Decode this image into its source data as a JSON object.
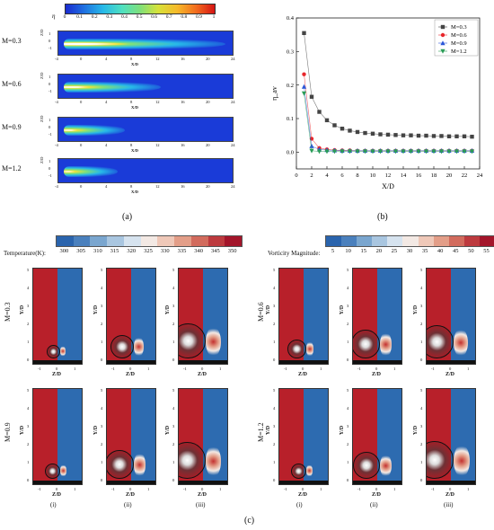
{
  "eta_colorbar": {
    "symbol": "η",
    "ticks": [
      "0",
      "0.1",
      "0.2",
      "0.3",
      "0.4",
      "0.5",
      "0.6",
      "0.7",
      "0.8",
      "0.9",
      "1"
    ]
  },
  "panel_a": {
    "caption": "(a)",
    "rows": [
      {
        "label": "M=0.3",
        "jet_length": 1.0,
        "core_strength": 1.0
      },
      {
        "label": "M=0.6",
        "jet_length": 0.55,
        "core_strength": 0.6
      },
      {
        "label": "M=0.9",
        "jet_length": 0.3,
        "core_strength": 0.45
      },
      {
        "label": "M=1.2",
        "jet_length": 0.25,
        "core_strength": 0.4
      }
    ],
    "xlabel": "X/D",
    "ylabel": "Z/D",
    "xticks": [
      "-4",
      "0",
      "4",
      "8",
      "12",
      "16",
      "20",
      "24"
    ],
    "yticks": [
      "1",
      "0",
      "-1"
    ]
  },
  "chart_data": {
    "type": "line",
    "caption": "(b)",
    "xlabel": "X/D",
    "ylabel": "η_av",
    "xlim": [
      0,
      24
    ],
    "ylim": [
      -0.05,
      0.4
    ],
    "xticks": [
      "0",
      "2",
      "4",
      "6",
      "8",
      "10",
      "12",
      "14",
      "16",
      "18",
      "20",
      "22",
      "24"
    ],
    "yticks": [
      "0.0",
      "0.1",
      "0.2",
      "0.3",
      "0.4"
    ],
    "legend_position": "top-right",
    "x": [
      1,
      2,
      3,
      4,
      5,
      6,
      7,
      8,
      9,
      10,
      11,
      12,
      13,
      14,
      15,
      16,
      17,
      18,
      19,
      20,
      21,
      22,
      23
    ],
    "series": [
      {
        "name": "M=0.3",
        "color": "#444444",
        "marker": "square",
        "values": [
          0.355,
          0.165,
          0.12,
          0.095,
          0.08,
          0.07,
          0.064,
          0.06,
          0.057,
          0.055,
          0.053,
          0.052,
          0.051,
          0.05,
          0.05,
          0.049,
          0.049,
          0.048,
          0.048,
          0.047,
          0.047,
          0.047,
          0.046
        ]
      },
      {
        "name": "M=0.6",
        "color": "#e8262b",
        "marker": "circle",
        "values": [
          0.232,
          0.04,
          0.012,
          0.008,
          0.006,
          0.005,
          0.005,
          0.004,
          0.004,
          0.004,
          0.004,
          0.004,
          0.004,
          0.004,
          0.004,
          0.004,
          0.004,
          0.004,
          0.004,
          0.004,
          0.004,
          0.004,
          0.004
        ]
      },
      {
        "name": "M=0.9",
        "color": "#2a55d8",
        "marker": "triangle",
        "values": [
          0.195,
          0.018,
          0.008,
          0.006,
          0.005,
          0.004,
          0.004,
          0.004,
          0.004,
          0.004,
          0.004,
          0.004,
          0.004,
          0.004,
          0.004,
          0.004,
          0.004,
          0.004,
          0.004,
          0.004,
          0.004,
          0.004,
          0.004
        ]
      },
      {
        "name": "M=1.2",
        "color": "#2a9d57",
        "marker": "triangle-down",
        "values": [
          0.175,
          0.004,
          0.002,
          0.002,
          0.002,
          0.002,
          0.002,
          0.002,
          0.002,
          0.002,
          0.002,
          0.002,
          0.002,
          0.002,
          0.002,
          0.002,
          0.002,
          0.002,
          0.002,
          0.002,
          0.002,
          0.002,
          0.002
        ]
      }
    ]
  },
  "temperature_colorbar": {
    "label": "Temperature(K):",
    "ticks": [
      "300",
      "305",
      "310",
      "315",
      "320",
      "325",
      "330",
      "335",
      "340",
      "345",
      "350"
    ],
    "colors": [
      "#2a64ad",
      "#4a80bd",
      "#7aa6cf",
      "#a9c6e0",
      "#d6e3ef",
      "#f3e9e4",
      "#efc8b8",
      "#e39e88",
      "#d26b5d",
      "#bd3a3e",
      "#a3152a"
    ]
  },
  "vorticity_colorbar": {
    "label": "Vorticity Magnitude:",
    "ticks": [
      "5",
      "10",
      "15",
      "20",
      "25",
      "30",
      "35",
      "40",
      "45",
      "50",
      "55"
    ],
    "colors": [
      "#2a64ad",
      "#4a80bd",
      "#7aa6cf",
      "#a9c6e0",
      "#d6e3ef",
      "#f3e9e4",
      "#efc8b8",
      "#e39e88",
      "#d26b5d",
      "#bd3a3e",
      "#a3152a"
    ]
  },
  "panel_c": {
    "caption": "(c)",
    "xlabel": "Z/D",
    "ylabel": "Y/D",
    "xticks": [
      "-1",
      "0",
      "1"
    ],
    "yticks": [
      "5",
      "4",
      "3",
      "2",
      "1",
      "0"
    ],
    "groups": [
      {
        "label": "M=0.3",
        "vortex": [
          0.15,
          0.45,
          0.8
        ]
      },
      {
        "label": "M=0.6",
        "vortex": [
          0.3,
          0.6,
          0.75
        ]
      },
      {
        "label": "M=0.9",
        "vortex": [
          0.2,
          0.6,
          0.85
        ]
      },
      {
        "label": "M=1.2",
        "vortex": [
          0.2,
          0.55,
          0.9
        ]
      }
    ],
    "sublabels": [
      "(i)",
      "(ii)",
      "(iii)"
    ]
  }
}
